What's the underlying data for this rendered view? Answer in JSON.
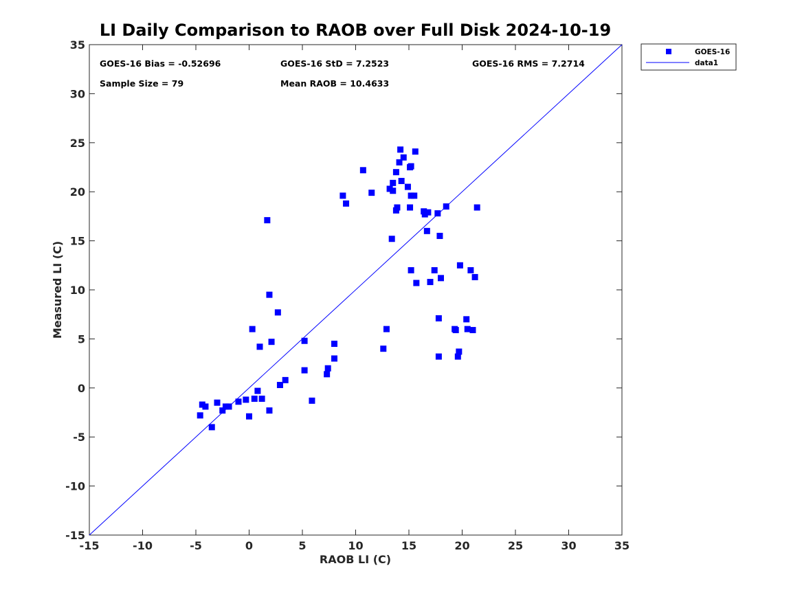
{
  "chart_data": {
    "type": "scatter",
    "title": "LI Daily Comparison to RAOB over Full Disk 2024-10-19",
    "xlabel": "RAOB LI (C)",
    "ylabel": "Measured LI (C)",
    "xlim": [
      -15,
      35
    ],
    "ylim": [
      -15,
      35
    ],
    "xticks": [
      -15,
      -10,
      -5,
      0,
      5,
      10,
      15,
      20,
      25,
      30,
      35
    ],
    "yticks": [
      -15,
      -10,
      -5,
      0,
      5,
      10,
      15,
      20,
      25,
      30,
      35
    ],
    "grid": false,
    "legend_position": "outside-top-right",
    "annotations": [
      "GOES-16 Bias = -0.52696",
      "GOES-16 StD = 7.2523",
      "GOES-16 RMS = 7.2714",
      "Sample Size = 79",
      "Mean RAOB = 10.4633"
    ],
    "series": [
      {
        "name": "GOES-16",
        "kind": "scatter",
        "marker": "square",
        "color": "#0000ff",
        "points": [
          [
            -4.6,
            -2.8
          ],
          [
            -4.4,
            -1.7
          ],
          [
            -4.1,
            -1.9
          ],
          [
            -3.5,
            -4.0
          ],
          [
            -3.0,
            -1.5
          ],
          [
            -2.5,
            -2.3
          ],
          [
            -2.2,
            -1.9
          ],
          [
            -1.9,
            -1.9
          ],
          [
            -1.0,
            -1.4
          ],
          [
            -0.3,
            -1.2
          ],
          [
            0.0,
            -2.9
          ],
          [
            0.5,
            -1.1
          ],
          [
            0.8,
            -0.3
          ],
          [
            1.2,
            -1.1
          ],
          [
            1.9,
            -2.3
          ],
          [
            2.9,
            0.3
          ],
          [
            3.4,
            0.8
          ],
          [
            5.2,
            1.8
          ],
          [
            5.9,
            -1.3
          ],
          [
            7.3,
            1.4
          ],
          [
            7.4,
            2.0
          ],
          [
            8.0,
            3.0
          ],
          [
            0.3,
            6.0
          ],
          [
            1.0,
            4.2
          ],
          [
            2.1,
            4.7
          ],
          [
            5.2,
            4.8
          ],
          [
            8.0,
            4.5
          ],
          [
            1.9,
            9.5
          ],
          [
            2.7,
            7.7
          ],
          [
            1.7,
            17.1
          ],
          [
            8.8,
            19.6
          ],
          [
            9.1,
            18.8
          ],
          [
            10.7,
            22.2
          ],
          [
            11.5,
            19.9
          ],
          [
            12.6,
            4.0
          ],
          [
            12.9,
            6.0
          ],
          [
            13.2,
            20.3
          ],
          [
            13.4,
            15.2
          ],
          [
            13.5,
            20.9
          ],
          [
            13.5,
            20.1
          ],
          [
            13.8,
            18.1
          ],
          [
            13.8,
            22.0
          ],
          [
            13.9,
            18.4
          ],
          [
            14.1,
            23.0
          ],
          [
            14.2,
            24.3
          ],
          [
            14.3,
            21.1
          ],
          [
            14.5,
            23.5
          ],
          [
            14.9,
            20.5
          ],
          [
            15.1,
            22.5
          ],
          [
            15.2,
            22.6
          ],
          [
            15.1,
            18.4
          ],
          [
            15.2,
            19.6
          ],
          [
            15.2,
            12.0
          ],
          [
            15.5,
            19.6
          ],
          [
            15.6,
            24.1
          ],
          [
            15.7,
            10.7
          ],
          [
            16.4,
            18.0
          ],
          [
            16.5,
            17.7
          ],
          [
            16.7,
            16.0
          ],
          [
            16.8,
            17.9
          ],
          [
            17.0,
            10.8
          ],
          [
            17.4,
            12.0
          ],
          [
            17.7,
            17.8
          ],
          [
            17.8,
            7.1
          ],
          [
            17.8,
            3.2
          ],
          [
            17.9,
            15.5
          ],
          [
            18.0,
            11.2
          ],
          [
            18.5,
            18.5
          ],
          [
            19.3,
            6.0
          ],
          [
            19.4,
            5.9
          ],
          [
            19.6,
            3.2
          ],
          [
            19.7,
            3.7
          ],
          [
            19.8,
            12.5
          ],
          [
            20.4,
            7.0
          ],
          [
            20.5,
            6.0
          ],
          [
            20.8,
            12.0
          ],
          [
            21.0,
            5.9
          ],
          [
            21.2,
            11.3
          ],
          [
            21.4,
            18.4
          ]
        ]
      },
      {
        "name": "data1",
        "kind": "line",
        "color": "#0000ff",
        "x": [
          -15,
          35
        ],
        "y": [
          -15,
          35
        ]
      }
    ]
  }
}
